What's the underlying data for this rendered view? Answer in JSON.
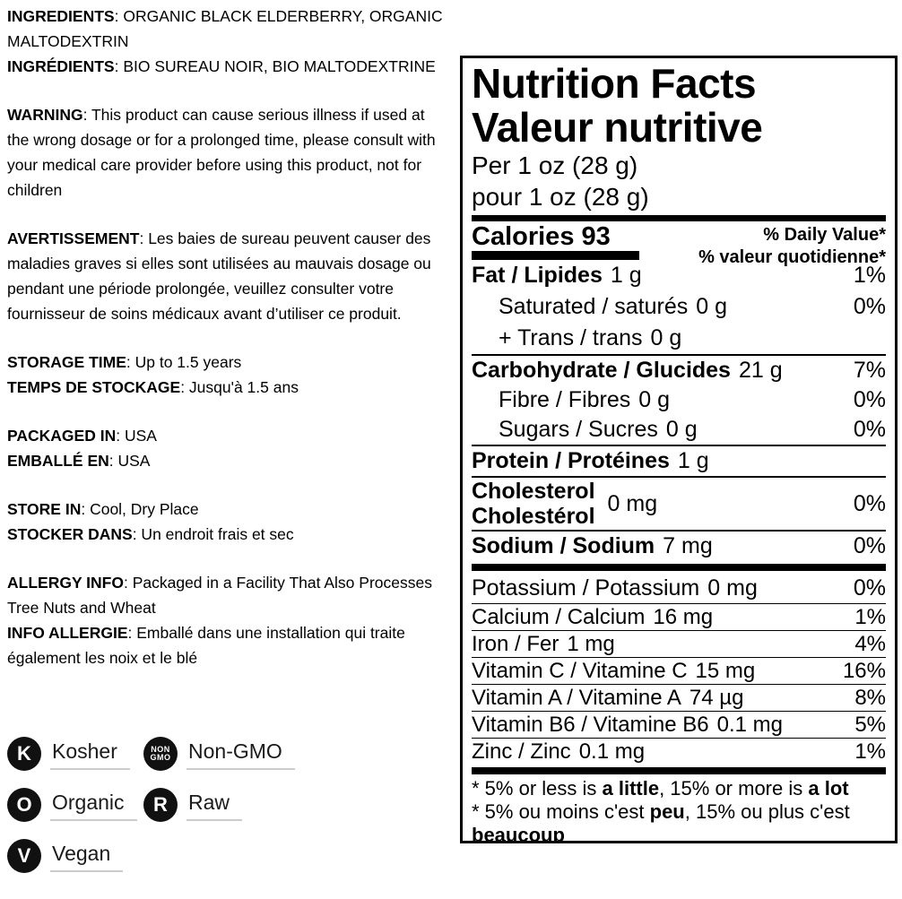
{
  "info": {
    "sections": [
      {
        "blocks": [
          {
            "label": "INGREDIENTS",
            "text": ": ORGANIC BLACK ELDERBERRY, ORGANIC MALTODEXTRIN"
          },
          {
            "label": "INGRÉDIENTS",
            "text": ": BIO SUREAU NOIR, BIO MALTODEXTRINE"
          }
        ]
      },
      {
        "blocks": [
          {
            "label": "WARNING",
            "text": ": This product can cause serious illness if used at the wrong dosage or for a prolonged time, please consult with your medical care provider before using this product, not for children"
          }
        ]
      },
      {
        "blocks": [
          {
            "label": "AVERTISSEMENT",
            "text": ": Les baies de sureau peuvent causer des maladies graves si elles sont utilisées au mauvais dosage ou pendant une période prolongée, veuillez consulter votre fournisseur de soins médicaux avant d’utiliser ce produit."
          }
        ]
      },
      {
        "blocks": [
          {
            "label": "STORAGE TIME",
            "text": ": Up to 1.5 years"
          },
          {
            "label": "TEMPS DE STOCKAGE",
            "text": ": Jusqu'à 1.5 ans"
          }
        ]
      },
      {
        "blocks": [
          {
            "label": "PACKAGED IN",
            "text": ": USA"
          },
          {
            "label": "EMBALLÉ EN",
            "text": ": USA"
          }
        ]
      },
      {
        "blocks": [
          {
            "label": "STORE IN",
            "text": ": Cool, Dry Place"
          },
          {
            "label": "STOCKER DANS",
            "text": ": Un endroit frais et sec"
          }
        ]
      },
      {
        "blocks": [
          {
            "label": "ALLERGY INFO",
            "text": ": Packaged in a Facility That Also Processes Tree Nuts and Wheat"
          },
          {
            "label": "INFO ALLERGIE",
            "text": ": Emballé dans une installation qui traite également les noix et le blé"
          }
        ]
      }
    ]
  },
  "badges": [
    {
      "icon": "K",
      "label": "Kosher"
    },
    {
      "icon_line1": "NON",
      "icon_line2": "GMO",
      "label": "Non-GMO"
    },
    {
      "icon": "O",
      "label": "Organic"
    },
    {
      "icon": "R",
      "label": "Raw"
    },
    {
      "icon": "V",
      "label": "Vegan"
    }
  ],
  "nutrition": {
    "title_en": "Nutrition Facts",
    "title_fr": "Valeur nutritive",
    "serving_en": "Per 1 oz (28 g)",
    "serving_fr": "pour 1 oz (28 g)",
    "calories_label": "Calories",
    "calories_value": "93",
    "dv_head_en": "% Daily Value*",
    "dv_head_fr": "% valeur quotidienne*",
    "rows": [
      {
        "name": "Fat / Lipides",
        "amount": "1 g",
        "dv": "1%"
      },
      {
        "name": "Saturated / saturés",
        "amount": "0 g",
        "dv": "0%"
      },
      {
        "name": "+ Trans / trans",
        "amount": "0 g",
        "dv": ""
      },
      {
        "name": "Carbohydrate / Glucides",
        "amount": "21 g",
        "dv": "7%"
      },
      {
        "name": "Fibre / Fibres",
        "amount": "0 g",
        "dv": "0%"
      },
      {
        "name": "Sugars / Sucres",
        "amount": "0 g",
        "dv": "0%"
      },
      {
        "name": "Protein / Protéines",
        "amount": "1 g",
        "dv": ""
      },
      {
        "name_en": "Cholesterol",
        "name_fr": "Cholestérol",
        "amount": "0 mg",
        "dv": "0%"
      },
      {
        "name": "Sodium / Sodium",
        "amount": "7 mg",
        "dv": "0%"
      },
      {
        "name": "Potassium / Potassium",
        "amount": "0 mg",
        "dv": "0%"
      },
      {
        "name": "Calcium / Calcium",
        "amount": "16 mg",
        "dv": "1%"
      },
      {
        "name": "Iron / Fer",
        "amount": "1 mg",
        "dv": "4%"
      },
      {
        "name": "Vitamin C / Vitamine C",
        "amount": "15 mg",
        "dv": "16%"
      },
      {
        "name": "Vitamin A / Vitamine A",
        "amount": "74 µg",
        "dv": "8%"
      },
      {
        "name": "Vitamin B6 / Vitamine B6",
        "amount": "0.1 mg",
        "dv": "5%"
      },
      {
        "name": "Zinc / Zinc",
        "amount": "0.1 mg",
        "dv": "1%"
      }
    ],
    "footnote_en": {
      "p1": "* 5% or less is ",
      "b1": "a little",
      "p2": ", 15% or more is ",
      "b2": "a lot"
    },
    "footnote_fr": {
      "p1": "* 5% ou moins c'est ",
      "b1": "peu",
      "p2": ", 15% ou plus c'est ",
      "b2": "beaucoup"
    }
  },
  "colors": {
    "text": "#000000",
    "badge_bg": "#111111",
    "underline": "#cccccc"
  }
}
